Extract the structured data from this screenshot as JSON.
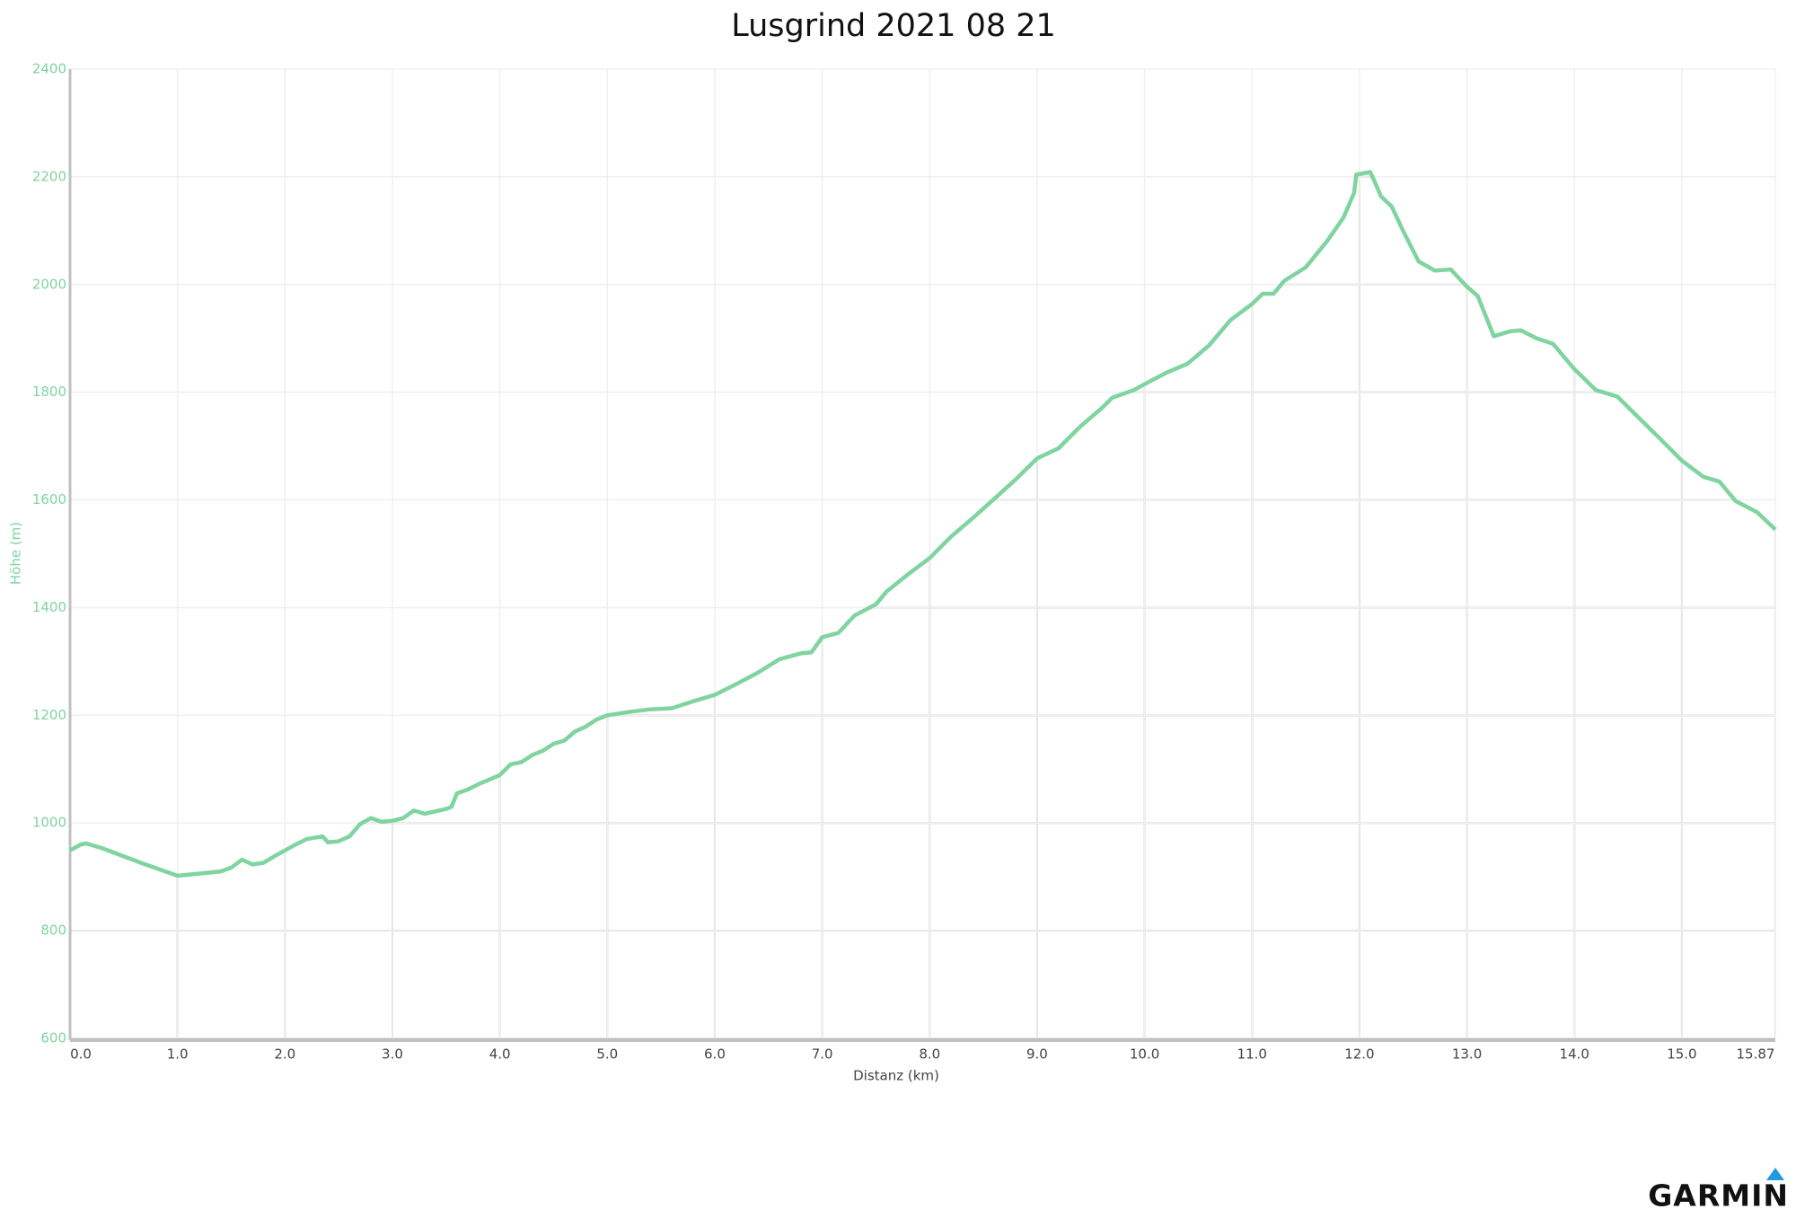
{
  "chart_data": {
    "type": "line",
    "title": "Lusgrind 2021 08 21",
    "x_label": "Distanz (km)",
    "y_label": "Höhe (m)",
    "watermark": "GARMIN",
    "color": "#7fd4a0",
    "grid": true,
    "xlim": [
      0,
      15.87
    ],
    "ylim": [
      600,
      2400
    ],
    "xticks": [
      {
        "value": 0,
        "label": "0.0"
      },
      {
        "value": 1,
        "label": "1.0"
      },
      {
        "value": 2,
        "label": "2.0"
      },
      {
        "value": 3,
        "label": "3.0"
      },
      {
        "value": 4,
        "label": "4.0"
      },
      {
        "value": 5,
        "label": "5.0"
      },
      {
        "value": 6,
        "label": "6.0"
      },
      {
        "value": 7,
        "label": "7.0"
      },
      {
        "value": 8,
        "label": "8.0"
      },
      {
        "value": 9,
        "label": "9.0"
      },
      {
        "value": 10,
        "label": "10.0"
      },
      {
        "value": 11,
        "label": "11.0"
      },
      {
        "value": 12,
        "label": "12.0"
      },
      {
        "value": 13,
        "label": "13.0"
      },
      {
        "value": 14,
        "label": "14.0"
      },
      {
        "value": 15,
        "label": "15.0"
      },
      15.87
    ],
    "yticks": [
      600,
      800,
      1000,
      1200,
      1400,
      1600,
      1800,
      2000,
      2200,
      2400
    ],
    "x": [
      0,
      0.1,
      0.15,
      0.3,
      0.5,
      0.7,
      0.9,
      1.0,
      1.2,
      1.4,
      1.5,
      1.6,
      1.7,
      1.8,
      1.9,
      2.0,
      2.1,
      2.2,
      2.35,
      2.4,
      2.5,
      2.6,
      2.7,
      2.8,
      2.9,
      3.0,
      3.1,
      3.2,
      3.3,
      3.5,
      3.55,
      3.6,
      3.7,
      3.8,
      4.0,
      4.1,
      4.2,
      4.3,
      4.4,
      4.5,
      4.6,
      4.7,
      4.8,
      4.9,
      5.0,
      5.2,
      5.4,
      5.6,
      5.8,
      6.0,
      6.2,
      6.4,
      6.6,
      6.8,
      6.9,
      7.0,
      7.15,
      7.3,
      7.5,
      7.6,
      7.8,
      8.0,
      8.2,
      8.4,
      8.6,
      8.8,
      9.0,
      9.2,
      9.4,
      9.6,
      9.7,
      9.9,
      10.0,
      10.2,
      10.4,
      10.6,
      10.8,
      11.0,
      11.1,
      11.2,
      11.3,
      11.5,
      11.7,
      11.85,
      11.95,
      11.97,
      12.1,
      12.15,
      12.2,
      12.3,
      12.4,
      12.55,
      12.7,
      12.85,
      13.0,
      13.1,
      13.25,
      13.4,
      13.5,
      13.65,
      13.8,
      14.0,
      14.2,
      14.4,
      14.5,
      14.8,
      15.0,
      15.2,
      15.35,
      15.5,
      15.7,
      15.87
    ],
    "values": [
      949,
      960,
      962,
      953,
      938,
      923,
      909,
      902,
      906,
      910,
      917,
      932,
      923,
      926,
      938,
      949,
      960,
      970,
      975,
      964,
      966,
      975,
      998,
      1009,
      1002,
      1004,
      1009,
      1023,
      1017,
      1026,
      1030,
      1055,
      1062,
      1072,
      1089,
      1109,
      1113,
      1126,
      1134,
      1147,
      1153,
      1170,
      1179,
      1192,
      1200,
      1206,
      1211,
      1213,
      1226,
      1238,
      1258,
      1279,
      1304,
      1315,
      1317,
      1345,
      1353,
      1385,
      1406,
      1430,
      1462,
      1492,
      1532,
      1566,
      1602,
      1638,
      1677,
      1696,
      1736,
      1770,
      1790,
      1804,
      1815,
      1836,
      1853,
      1887,
      1934,
      1964,
      1983,
      1983,
      2007,
      2032,
      2081,
      2124,
      2170,
      2204,
      2209,
      2187,
      2164,
      2145,
      2102,
      2043,
      2026,
      2028,
      1996,
      1979,
      1904,
      1913,
      1915,
      1900,
      1890,
      1843,
      1804,
      1792,
      1772,
      1713,
      1673,
      1643,
      1634,
      1598,
      1577,
      1545
    ]
  }
}
